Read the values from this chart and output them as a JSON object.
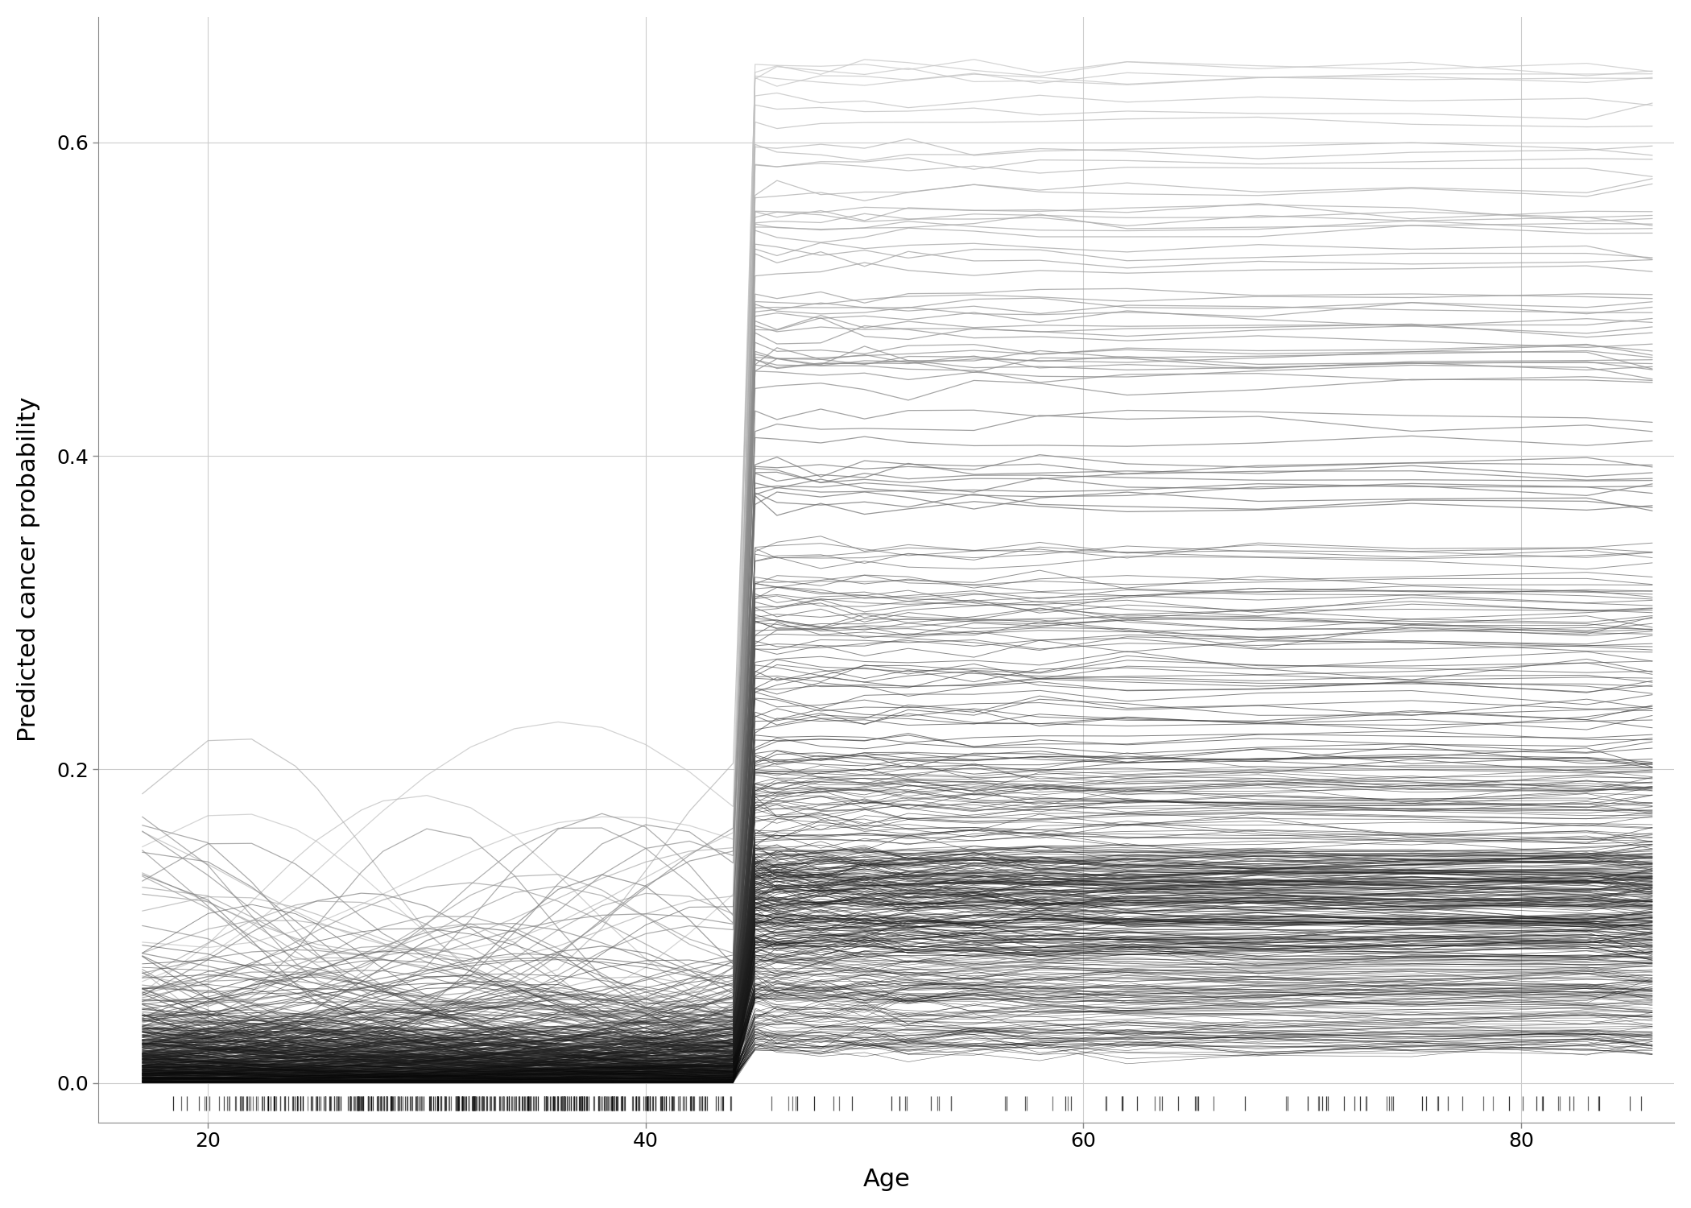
{
  "title": "",
  "xlabel": "Age",
  "ylabel": "Predicted cancer probability",
  "xlim": [
    15,
    87
  ],
  "ylim": [
    -0.025,
    0.68
  ],
  "yticks": [
    0.0,
    0.2,
    0.4,
    0.6
  ],
  "xticks": [
    20,
    40,
    60,
    80
  ],
  "background_color": "#ffffff",
  "grid_color": "#cccccc",
  "n_lines": 500,
  "seed": 42
}
